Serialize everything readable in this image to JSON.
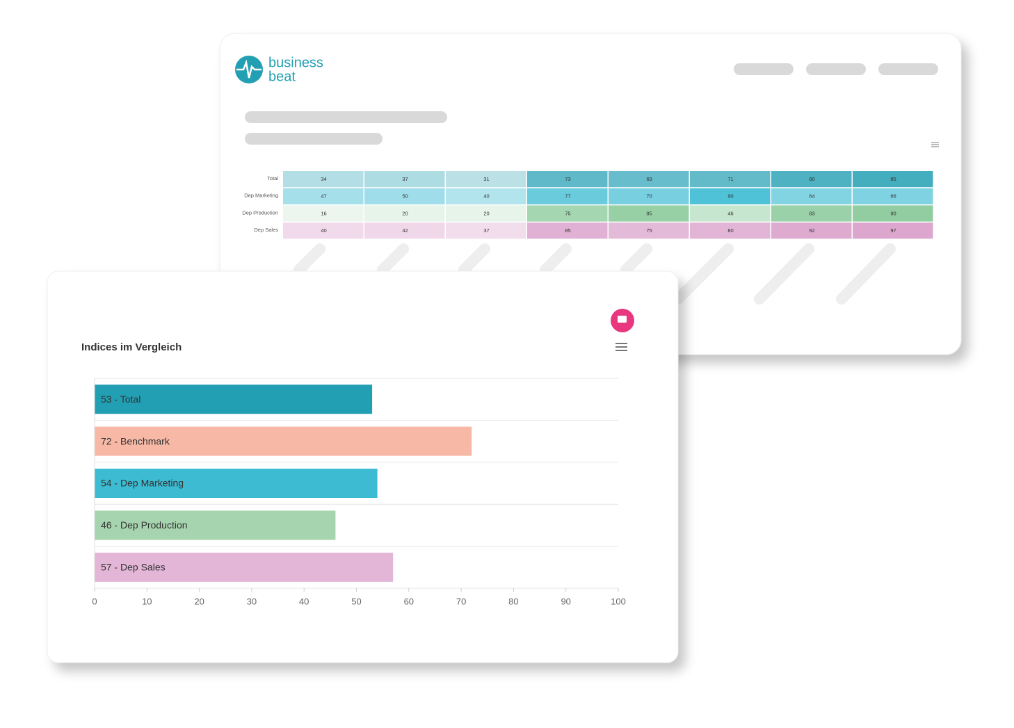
{
  "logo": {
    "line1": "business",
    "line2": "beat"
  },
  "chart_data": [
    {
      "type": "heatmap",
      "series": [
        {
          "name": "Total",
          "color": "#239fb3",
          "values": [
            34,
            37,
            31,
            73,
            69,
            71,
            80,
            85
          ]
        },
        {
          "name": "Dep Marketing",
          "color": "#3dbbd3",
          "values": [
            47,
            50,
            40,
            77,
            70,
            90,
            64,
            66
          ]
        },
        {
          "name": "Dep Production",
          "color": "#86c897",
          "values": [
            16,
            20,
            20,
            75,
            85,
            46,
            83,
            90
          ]
        },
        {
          "name": "Dep Sales",
          "color": "#dba3cc",
          "values": [
            40,
            42,
            37,
            85,
            75,
            80,
            92,
            97
          ]
        }
      ]
    },
    {
      "type": "hbar",
      "title": "Indices im Vergleich",
      "values": [
        53,
        72,
        54,
        46,
        57
      ],
      "value_labels": [
        "53 - Total",
        "72 - Benchmark",
        "54 - Dep Marketing",
        "46 - Dep Production",
        "57 - Dep Sales"
      ],
      "colors": [
        "#239fb3",
        "#f7b8a6",
        "#3dbbd3",
        "#a6d4ae",
        "#e3b5d6"
      ],
      "xlim": [
        0,
        100
      ],
      "xticks": [
        0,
        10,
        20,
        30,
        40,
        50,
        60,
        70,
        80,
        90,
        100
      ],
      "grid": true
    }
  ]
}
